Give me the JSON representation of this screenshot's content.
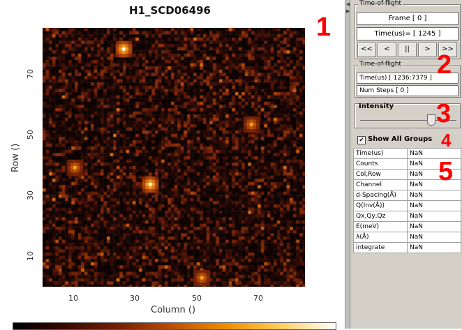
{
  "plot": {
    "title": "H1_SCD06496",
    "xlabel": "Column ()",
    "ylabel": "Row ()",
    "x_ticks": [
      "10",
      "30",
      "50",
      "70"
    ],
    "y_ticks": [
      "70",
      "50",
      "30",
      "10"
    ]
  },
  "annotations": [
    "1",
    "2",
    "3",
    "4",
    "5"
  ],
  "tof_frame": {
    "legend": "Time-of-flight",
    "frame_label": "Frame  [ 0 ]",
    "time_label": "Time(us)= [ 1245 ]",
    "buttons": [
      "<<",
      "<",
      "||",
      ">",
      ">>"
    ]
  },
  "tof_range": {
    "legend": "Time-of-flight",
    "time_range": "Time(us) [ 1236:7379 ]",
    "num_steps": "Num Steps [ 0 ]"
  },
  "intensity": {
    "label": "Intensity",
    "level": 0.75
  },
  "show_all_groups": {
    "label": "Show All Groups",
    "checked": true
  },
  "info_table": [
    {
      "key": "Time(us)",
      "value": "NaN"
    },
    {
      "key": "Counts",
      "value": "NaN"
    },
    {
      "key": "Col,Row",
      "value": "NaN"
    },
    {
      "key": "Channel",
      "value": "NaN"
    },
    {
      "key": "d-Spacing(Å)",
      "value": "NaN"
    },
    {
      "key": "Q(Inv(Å))",
      "value": "NaN"
    },
    {
      "key": "Qx,Qy,Qz",
      "value": "NaN"
    },
    {
      "key": "E(meV)",
      "value": "NaN"
    },
    {
      "key": "λ(Å)",
      "value": "NaN"
    },
    {
      "key": "integrate",
      "value": "NaN"
    }
  ],
  "colors": {
    "heatmap_bg": "#2a0a05",
    "annotation": "#ff0000",
    "panel_bg": "#d4d0c8"
  }
}
